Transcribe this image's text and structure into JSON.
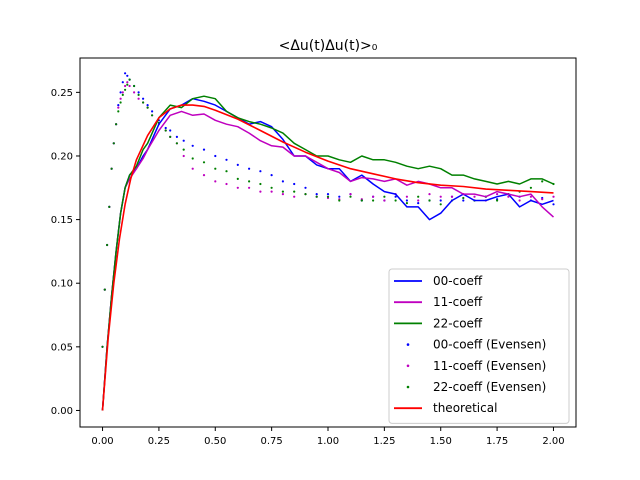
{
  "chart_data": {
    "type": "line",
    "title": "<Δu(t)Δu(t)>₀",
    "xlabel": "",
    "ylabel": "",
    "xlim": [
      -0.1,
      2.1
    ],
    "ylim": [
      -0.013,
      0.277
    ],
    "xticks": [
      0.0,
      0.25,
      0.5,
      0.75,
      1.0,
      1.25,
      1.5,
      1.75,
      2.0
    ],
    "xtick_labels": [
      "0.00",
      "0.25",
      "0.50",
      "0.75",
      "1.00",
      "1.25",
      "1.50",
      "1.75",
      "2.00"
    ],
    "yticks": [
      0.0,
      0.05,
      0.1,
      0.15,
      0.2,
      0.25
    ],
    "ytick_labels": [
      "0.00",
      "0.05",
      "0.10",
      "0.15",
      "0.20",
      "0.25"
    ],
    "grid": false,
    "legend_position": "lower right",
    "series": [
      {
        "name": "00-coeff",
        "style": "line",
        "color": "#0000ff",
        "x": [
          0,
          0.02,
          0.04,
          0.06,
          0.08,
          0.1,
          0.12,
          0.15,
          0.18,
          0.2,
          0.25,
          0.3,
          0.35,
          0.4,
          0.45,
          0.5,
          0.55,
          0.6,
          0.65,
          0.7,
          0.75,
          0.8,
          0.85,
          0.9,
          0.95,
          1.0,
          1.05,
          1.1,
          1.15,
          1.2,
          1.25,
          1.3,
          1.35,
          1.4,
          1.45,
          1.5,
          1.55,
          1.6,
          1.65,
          1.7,
          1.75,
          1.8,
          1.85,
          1.9,
          1.95,
          2.0
        ],
        "y": [
          0.0,
          0.05,
          0.09,
          0.125,
          0.155,
          0.175,
          0.185,
          0.19,
          0.2,
          0.205,
          0.225,
          0.237,
          0.24,
          0.245,
          0.243,
          0.24,
          0.235,
          0.23,
          0.225,
          0.227,
          0.223,
          0.213,
          0.2,
          0.2,
          0.193,
          0.19,
          0.19,
          0.18,
          0.185,
          0.178,
          0.172,
          0.17,
          0.16,
          0.16,
          0.15,
          0.155,
          0.165,
          0.17,
          0.165,
          0.165,
          0.168,
          0.17,
          0.16,
          0.165,
          0.162,
          0.165
        ]
      },
      {
        "name": "11-coeff",
        "style": "line",
        "color": "#bf00bf",
        "x": [
          0,
          0.02,
          0.04,
          0.06,
          0.08,
          0.1,
          0.12,
          0.15,
          0.18,
          0.2,
          0.25,
          0.3,
          0.35,
          0.4,
          0.45,
          0.5,
          0.55,
          0.6,
          0.65,
          0.7,
          0.75,
          0.8,
          0.85,
          0.9,
          0.95,
          1.0,
          1.05,
          1.1,
          1.15,
          1.2,
          1.25,
          1.3,
          1.35,
          1.4,
          1.45,
          1.5,
          1.55,
          1.6,
          1.65,
          1.7,
          1.75,
          1.8,
          1.85,
          1.9,
          1.95,
          2.0
        ],
        "y": [
          0.0,
          0.05,
          0.09,
          0.125,
          0.155,
          0.175,
          0.182,
          0.19,
          0.198,
          0.205,
          0.22,
          0.232,
          0.235,
          0.232,
          0.233,
          0.228,
          0.225,
          0.223,
          0.218,
          0.212,
          0.208,
          0.207,
          0.2,
          0.2,
          0.195,
          0.19,
          0.187,
          0.18,
          0.183,
          0.182,
          0.18,
          0.182,
          0.177,
          0.18,
          0.178,
          0.175,
          0.175,
          0.17,
          0.17,
          0.168,
          0.172,
          0.17,
          0.168,
          0.17,
          0.16,
          0.152
        ]
      },
      {
        "name": "22-coeff",
        "style": "line",
        "color": "#008000",
        "x": [
          0,
          0.02,
          0.04,
          0.06,
          0.08,
          0.1,
          0.12,
          0.15,
          0.18,
          0.2,
          0.25,
          0.3,
          0.35,
          0.4,
          0.45,
          0.5,
          0.55,
          0.6,
          0.65,
          0.7,
          0.75,
          0.8,
          0.85,
          0.9,
          0.95,
          1.0,
          1.05,
          1.1,
          1.15,
          1.2,
          1.25,
          1.3,
          1.35,
          1.4,
          1.45,
          1.5,
          1.55,
          1.6,
          1.65,
          1.7,
          1.75,
          1.8,
          1.85,
          1.9,
          1.95,
          2.0
        ],
        "y": [
          0.0,
          0.05,
          0.09,
          0.125,
          0.155,
          0.175,
          0.185,
          0.192,
          0.205,
          0.21,
          0.23,
          0.24,
          0.238,
          0.245,
          0.247,
          0.245,
          0.235,
          0.23,
          0.227,
          0.225,
          0.222,
          0.218,
          0.21,
          0.205,
          0.2,
          0.2,
          0.197,
          0.195,
          0.2,
          0.197,
          0.197,
          0.195,
          0.192,
          0.19,
          0.192,
          0.19,
          0.185,
          0.185,
          0.182,
          0.18,
          0.178,
          0.18,
          0.178,
          0.182,
          0.182,
          0.178
        ]
      },
      {
        "name": "00-coeff (Evensen)",
        "style": "dots",
        "color": "#0000ff",
        "x": [
          0,
          0.01,
          0.02,
          0.03,
          0.04,
          0.05,
          0.06,
          0.07,
          0.08,
          0.09,
          0.1,
          0.11,
          0.12,
          0.14,
          0.16,
          0.18,
          0.2,
          0.22,
          0.25,
          0.28,
          0.3,
          0.33,
          0.36,
          0.4,
          0.45,
          0.5,
          0.55,
          0.6,
          0.65,
          0.7,
          0.75,
          0.8,
          0.85,
          0.9,
          0.95,
          1.0,
          1.05,
          1.1,
          1.15,
          1.2,
          1.25,
          1.3,
          1.35,
          1.4,
          1.45,
          1.5,
          1.55,
          1.6,
          1.65,
          1.7,
          1.75,
          1.8,
          1.85,
          1.9,
          1.95,
          2.0
        ],
        "y": [
          0.05,
          0.095,
          0.13,
          0.16,
          0.19,
          0.21,
          0.225,
          0.24,
          0.25,
          0.258,
          0.265,
          0.263,
          0.26,
          0.255,
          0.25,
          0.245,
          0.24,
          0.235,
          0.228,
          0.222,
          0.22,
          0.215,
          0.212,
          0.208,
          0.205,
          0.2,
          0.197,
          0.193,
          0.19,
          0.188,
          0.185,
          0.18,
          0.178,
          0.175,
          0.17,
          0.17,
          0.168,
          0.17,
          0.165,
          0.168,
          0.165,
          0.168,
          0.165,
          0.163,
          0.165,
          0.165,
          0.168,
          0.165,
          0.165,
          0.168,
          0.166,
          0.17,
          0.168,
          0.165,
          0.167,
          0.162
        ]
      },
      {
        "name": "11-coeff (Evensen)",
        "style": "dots",
        "color": "#bf00bf",
        "x": [
          0,
          0.01,
          0.02,
          0.03,
          0.04,
          0.05,
          0.06,
          0.07,
          0.08,
          0.09,
          0.1,
          0.11,
          0.12,
          0.14,
          0.16,
          0.18,
          0.2,
          0.22,
          0.25,
          0.28,
          0.3,
          0.33,
          0.36,
          0.4,
          0.45,
          0.5,
          0.55,
          0.6,
          0.65,
          0.7,
          0.75,
          0.8,
          0.85,
          0.9,
          0.95,
          1.0,
          1.05,
          1.1,
          1.15,
          1.2,
          1.25,
          1.3,
          1.35,
          1.4,
          1.45,
          1.5,
          1.55,
          1.6,
          1.65,
          1.7,
          1.75,
          1.8,
          1.85,
          1.9,
          1.95,
          2.0
        ],
        "y": [
          0.05,
          0.095,
          0.13,
          0.16,
          0.19,
          0.21,
          0.225,
          0.238,
          0.245,
          0.25,
          0.255,
          0.258,
          0.255,
          0.25,
          0.245,
          0.242,
          0.238,
          0.232,
          0.225,
          0.22,
          0.215,
          0.21,
          0.2,
          0.19,
          0.185,
          0.18,
          0.178,
          0.175,
          0.175,
          0.172,
          0.172,
          0.17,
          0.168,
          0.17,
          0.168,
          0.167,
          0.166,
          0.17,
          0.166,
          0.168,
          0.165,
          0.17,
          0.168,
          0.165,
          0.17,
          0.168,
          0.168,
          0.17,
          0.168,
          0.165,
          0.17,
          0.168,
          0.165,
          0.168,
          0.166,
          0.168
        ]
      },
      {
        "name": "22-coeff (Evensen)",
        "style": "dots",
        "color": "#008000",
        "x": [
          0,
          0.01,
          0.02,
          0.03,
          0.04,
          0.05,
          0.06,
          0.07,
          0.08,
          0.09,
          0.1,
          0.11,
          0.12,
          0.14,
          0.16,
          0.18,
          0.2,
          0.22,
          0.25,
          0.28,
          0.3,
          0.33,
          0.36,
          0.4,
          0.45,
          0.5,
          0.55,
          0.6,
          0.65,
          0.7,
          0.75,
          0.8,
          0.85,
          0.9,
          0.95,
          1.0,
          1.05,
          1.1,
          1.15,
          1.2,
          1.25,
          1.3,
          1.35,
          1.4,
          1.45,
          1.5,
          1.55,
          1.6,
          1.65,
          1.7,
          1.75,
          1.8,
          1.85,
          1.9,
          1.95,
          2.0
        ],
        "y": [
          0.05,
          0.095,
          0.13,
          0.16,
          0.19,
          0.21,
          0.225,
          0.235,
          0.242,
          0.248,
          0.252,
          0.256,
          0.26,
          0.255,
          0.248,
          0.242,
          0.238,
          0.232,
          0.226,
          0.22,
          0.215,
          0.21,
          0.205,
          0.198,
          0.195,
          0.19,
          0.188,
          0.182,
          0.18,
          0.178,
          0.175,
          0.172,
          0.172,
          0.17,
          0.168,
          0.168,
          0.165,
          0.168,
          0.165,
          0.165,
          0.168,
          0.165,
          0.163,
          0.168,
          0.165,
          0.162,
          0.165,
          0.167,
          0.165,
          0.168,
          0.165,
          0.17,
          0.172,
          0.175,
          0.18,
          0.178
        ]
      },
      {
        "name": "theoretical",
        "style": "line",
        "color": "#ff0000",
        "x": [
          0,
          0.025,
          0.05,
          0.075,
          0.1,
          0.125,
          0.15,
          0.2,
          0.25,
          0.3,
          0.35,
          0.4,
          0.45,
          0.5,
          0.6,
          0.7,
          0.8,
          0.9,
          1.0,
          1.1,
          1.2,
          1.3,
          1.4,
          1.5,
          1.6,
          1.7,
          1.8,
          1.9,
          2.0
        ],
        "y": [
          0.0,
          0.057,
          0.1,
          0.135,
          0.162,
          0.182,
          0.197,
          0.216,
          0.23,
          0.237,
          0.24,
          0.24,
          0.239,
          0.236,
          0.229,
          0.22,
          0.211,
          0.203,
          0.196,
          0.19,
          0.186,
          0.182,
          0.179,
          0.177,
          0.176,
          0.174,
          0.173,
          0.172,
          0.171
        ]
      }
    ]
  }
}
